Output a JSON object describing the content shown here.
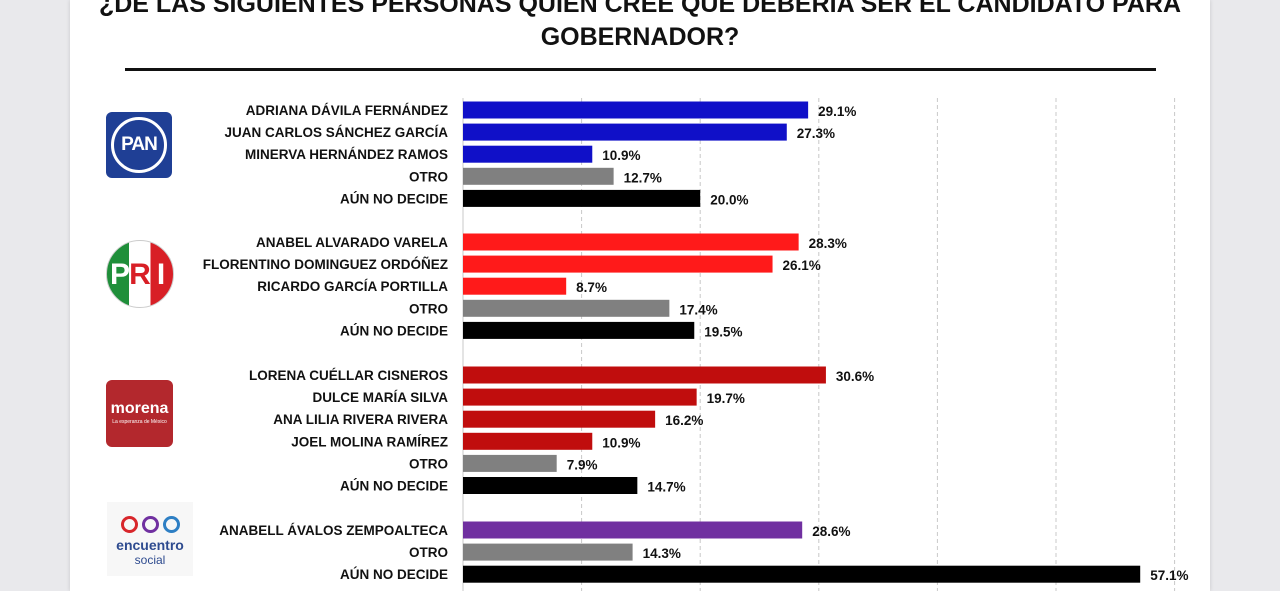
{
  "title": "¿DE LAS SIGUIENTES PERSONAS QUIEN CREE QUE DEBERÍA SER EL CANDIDATO PARA\nGOBERNADOR?",
  "logos": {
    "pan": "PAN",
    "pri": [
      "P",
      "R",
      "I"
    ],
    "morena": {
      "name": "morena",
      "slogan": "La esperanza de México"
    },
    "encuentro": {
      "line1": "encuentro",
      "line2": "social"
    }
  },
  "chart_data": {
    "type": "bar",
    "orientation": "horizontal",
    "title": "¿DE LAS SIGUIENTES PERSONAS QUIEN CREE QUE DEBERÍA SER EL CANDIDATO PARA GOBERNADOR?",
    "xlim": [
      0,
      60
    ],
    "grid": true,
    "groups": [
      {
        "party": "PAN",
        "items": [
          {
            "label": "ADRIANA DÁVILA FERNÁNDEZ",
            "value": 29.1,
            "display": "29.1%",
            "color": "#1010c8"
          },
          {
            "label": "JUAN CARLOS SÁNCHEZ GARCÍA",
            "value": 27.3,
            "display": "27.3%",
            "color": "#1010c8"
          },
          {
            "label": "MINERVA HERNÁNDEZ RAMOS",
            "value": 10.9,
            "display": "10.9%",
            "color": "#1010c8"
          },
          {
            "label": "OTRO",
            "value": 12.7,
            "display": "12.7%",
            "color": "#808080"
          },
          {
            "label": "AÚN NO DECIDE",
            "value": 20.0,
            "display": "20.0%",
            "color": "#000000"
          }
        ]
      },
      {
        "party": "PRI",
        "items": [
          {
            "label": "ANABEL ALVARADO VARELA",
            "value": 28.3,
            "display": "28.3%",
            "color": "#ff1a1a"
          },
          {
            "label": "FLORENTINO DOMINGUEZ ORDÓÑEZ",
            "value": 26.1,
            "display": "26.1%",
            "color": "#ff1a1a"
          },
          {
            "label": "RICARDO GARCÍA PORTILLA",
            "value": 8.7,
            "display": "8.7%",
            "color": "#ff1a1a"
          },
          {
            "label": "OTRO",
            "value": 17.4,
            "display": "17.4%",
            "color": "#808080"
          },
          {
            "label": "AÚN NO DECIDE",
            "value": 19.5,
            "display": "19.5%",
            "color": "#000000"
          }
        ]
      },
      {
        "party": "MORENA",
        "items": [
          {
            "label": "LORENA CUÉLLAR CISNEROS",
            "value": 30.6,
            "display": "30.6%",
            "color": "#c00d0d"
          },
          {
            "label": "DULCE MARÍA SILVA",
            "value": 19.7,
            "display": "19.7%",
            "color": "#c00d0d"
          },
          {
            "label": "ANA LILIA RIVERA RIVERA",
            "value": 16.2,
            "display": "16.2%",
            "color": "#c00d0d"
          },
          {
            "label": "JOEL MOLINA RAMÍREZ",
            "value": 10.9,
            "display": "10.9%",
            "color": "#c00d0d"
          },
          {
            "label": "OTRO",
            "value": 7.9,
            "display": "7.9%",
            "color": "#808080"
          },
          {
            "label": "AÚN NO DECIDE",
            "value": 14.7,
            "display": "14.7%",
            "color": "#000000"
          }
        ]
      },
      {
        "party": "ENCUENTRO SOCIAL",
        "items": [
          {
            "label": "ANABELL ÁVALOS ZEMPOALTECA",
            "value": 28.6,
            "display": "28.6%",
            "color": "#7030a0"
          },
          {
            "label": "OTRO",
            "value": 14.3,
            "display": "14.3%",
            "color": "#808080"
          },
          {
            "label": "AÚN NO DECIDE",
            "value": 57.1,
            "display": "57.1%",
            "color": "#000000"
          }
        ]
      }
    ]
  }
}
